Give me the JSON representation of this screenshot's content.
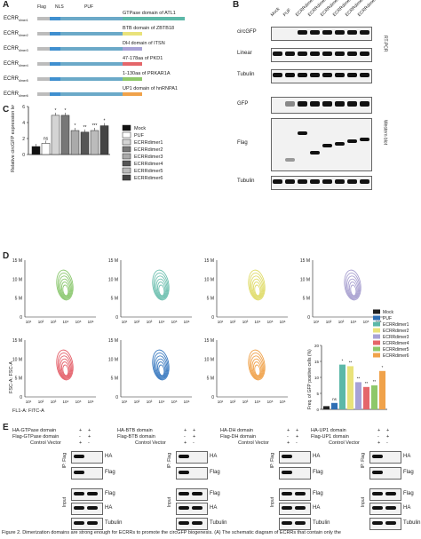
{
  "panels": {
    "A": "A",
    "B": "B",
    "C": "C",
    "D": "D",
    "E": "E"
  },
  "panelA": {
    "header": {
      "flag": "Flag",
      "nls": "NLS",
      "puf": "PUF"
    },
    "rows": [
      {
        "label": "ECRR",
        "sub": "dimer1",
        "domain": "GTPase domain of ATL1",
        "color": "#5cb8a8"
      },
      {
        "label": "ECRR",
        "sub": "dimer2",
        "domain": "BTB domain of ZBTB18",
        "color": "#e9e27a"
      },
      {
        "label": "ECRR",
        "sub": "dimer3",
        "domain": "DH domain of ITSN",
        "color": "#a7a2d6"
      },
      {
        "label": "ECRR",
        "sub": "dimer4",
        "domain": "47-178aa of PKD1",
        "color": "#e4666a"
      },
      {
        "label": "ECRR",
        "sub": "dimer5",
        "domain": "1-130aa of PRKAR1A",
        "color": "#8ec86a"
      },
      {
        "label": "ECRR",
        "sub": "dimer6",
        "domain": "UP1 domain of hnRNPA1",
        "color": "#f0a24a"
      }
    ]
  },
  "panelB": {
    "lanes": [
      "Mock",
      "PUF",
      "ECRRdimer1",
      "ECRRdimer2",
      "ECRRdimer3",
      "ECRRdimer4",
      "ECRRdimer5",
      "ECRRdimer6"
    ],
    "rows": [
      "circGFP",
      "Linear",
      "Tubulin",
      "GFP",
      "Flag",
      "Tubulin"
    ],
    "side_labels": {
      "rtpcr": "RT-PCR",
      "western": "Western blot"
    }
  },
  "panelC": {
    "chart_data": {
      "type": "bar",
      "ylabel": "Relative circGFP expression level",
      "ylim": [
        0,
        6
      ],
      "yticks": [
        0,
        2,
        4,
        6
      ],
      "categories": [
        "Mock",
        "PUF",
        "ECRRdimer1",
        "ECRRdimer2",
        "ECRRdimer3",
        "ECRRdimer4",
        "ECRRdimer5",
        "ECRRdimer6"
      ],
      "values": [
        1.0,
        1.4,
        4.9,
        4.9,
        3.0,
        2.8,
        3.0,
        3.6
      ],
      "significance": [
        "",
        "ns",
        "*",
        "*",
        "*",
        "**",
        "***",
        "*"
      ],
      "legend": [
        "Mock",
        "PUF",
        "ECRRdimer1",
        "ECRRdimer2",
        "ECRRdimer3",
        "ECRRdimer4",
        "ECRRdimer5",
        "ECRRdimer6"
      ]
    }
  },
  "panelD": {
    "yticks": [
      "15 M",
      "10 M",
      "5 M",
      "0"
    ],
    "xticks": [
      "10¹",
      "10²",
      "10³",
      "10⁴",
      "10⁵",
      "10⁶"
    ],
    "ylabel": "FSC-A: FSC-A",
    "xlabel": "FL1-A: FITC-A",
    "flow_colors": [
      "#8cc870",
      "#6ec0b0",
      "#e0dc6a",
      "#a8a0d0",
      "#e4606a",
      "#3a7ac0",
      "#f0a24a"
    ],
    "chart_data": {
      "type": "bar",
      "ylabel": "Freq. of GFP positive cells (%)",
      "ylim": [
        0,
        20
      ],
      "yticks": [
        0,
        5,
        10,
        15,
        20
      ],
      "categories": [
        "Mock",
        "PUF",
        "ECRRdimer1",
        "ECRRdimer2",
        "ECRRdimer3",
        "ECRRdimer4",
        "ECRRdimer5",
        "ECRRdimer6"
      ],
      "values": [
        1.0,
        2.0,
        14.0,
        13.5,
        8.5,
        7.0,
        7.5,
        12.0
      ],
      "significance": [
        "",
        "ns",
        "*",
        "**",
        "**",
        "**",
        "**",
        "*"
      ],
      "colors": [
        "#222222",
        "#2f6fb4",
        "#5cb8a8",
        "#e9e27a",
        "#a7a2d6",
        "#e4666a",
        "#8ec86a",
        "#f0a24a"
      ],
      "legend": [
        "Mock",
        "PUF",
        "ECRRdimer1",
        "ECRRdimer2",
        "ECRRdimer3",
        "ECRRdimer4",
        "ECRRdimer5",
        "ECRRdimer6"
      ]
    }
  },
  "panelE": {
    "blocks": [
      {
        "ha": "HA-GTPase domain",
        "flag": "Flag-GTPase domain",
        "cv": "Control Vector",
        "marks": [
          "+",
          "+",
          "-",
          "+",
          "+",
          "-"
        ]
      },
      {
        "ha": "HA-BTB domain",
        "flag": "Flag-BTB domain",
        "cv": "Control Vector",
        "marks": [
          "+",
          "+",
          "-",
          "+",
          "+",
          "-"
        ]
      },
      {
        "ha": "HA-DH domain",
        "flag": "Flag-DH domain",
        "cv": "Control Vector",
        "marks": [
          "+",
          "+",
          "-",
          "+",
          "+",
          "-"
        ]
      },
      {
        "ha": "HA-UP1 domain",
        "flag": "Flag-UP1 domain",
        "cv": "Control Vector",
        "marks": [
          "+",
          "+",
          "-",
          "+",
          "+",
          "-"
        ]
      }
    ],
    "ip_label": "IP: Flag",
    "input_label": "Input",
    "bands": [
      "HA",
      "Flag",
      "Flag",
      "HA",
      "Tubulin"
    ]
  },
  "caption": "Figure 2. Dimerization domains are strong enough for ECRRs to promote the circGFP biogenesis. (A) The schematic diagram of ECRRs that contain only the"
}
